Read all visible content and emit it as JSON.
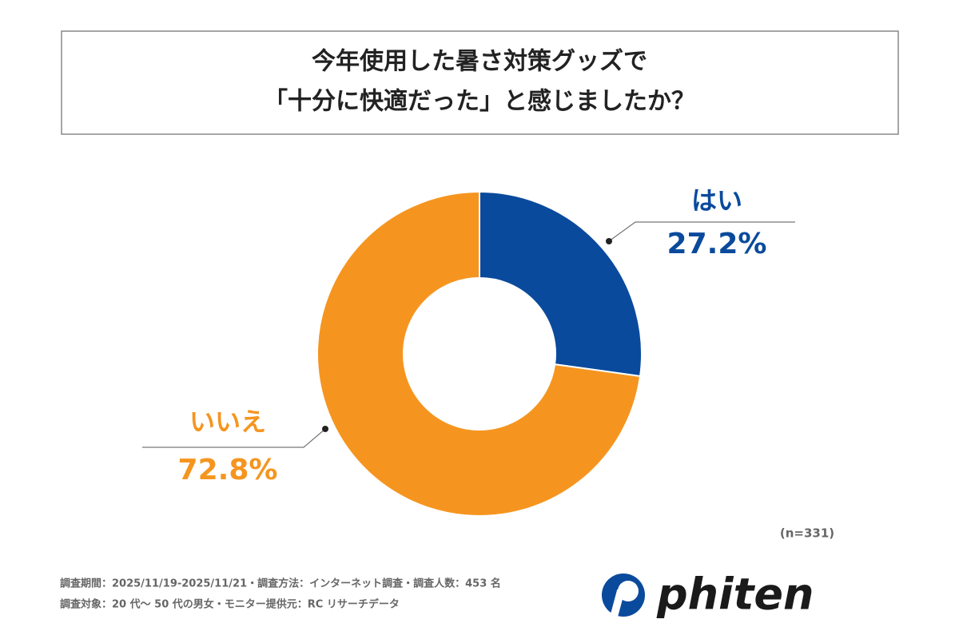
{
  "chart_data": {
    "type": "pie",
    "donut": true,
    "title": [
      "今年使用した暑さ対策グッズで",
      "「十分に快適だった」と感じましたか？"
    ],
    "categories": [
      "はい",
      "いいえ"
    ],
    "values": [
      27.2,
      72.8
    ],
    "value_labels": [
      "27.2%",
      "72.8%"
    ],
    "colors": [
      "#0a4a9c",
      "#f5951f"
    ],
    "note": "(n=331)"
  },
  "footer": [
    "調査期間：2025/11/19-2025/11/21・調査方法：インターネット調査・調査人数：453 名",
    "調査対象：20 代〜 50 代の男女・モニター提供元：RC リサーチデータ"
  ],
  "logo": "phiten"
}
